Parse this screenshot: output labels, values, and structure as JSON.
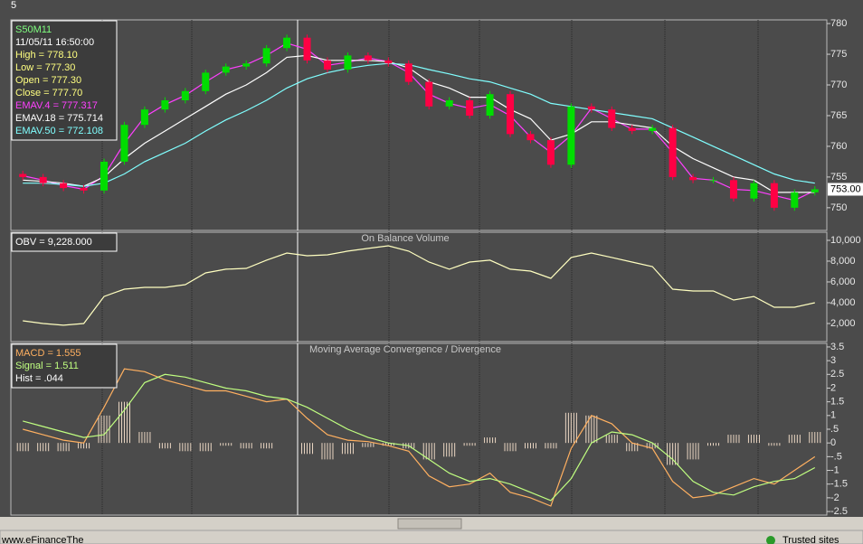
{
  "window": {
    "label": "5"
  },
  "status_bar": {
    "left": "www.eFinanceThe",
    "right": "Trusted sites"
  },
  "chart_data": [
    {
      "type": "candlestick",
      "info": [
        {
          "text": "S50M11",
          "color": "#80ff80"
        },
        {
          "text": "11/05/11 16:50:00",
          "color": "#ffffff"
        },
        {
          "text": "High  = 778.10",
          "color": "#ffff80"
        },
        {
          "text": "Low  = 777.30",
          "color": "#ffff80"
        },
        {
          "text": "Open = 777.30",
          "color": "#ffff80"
        },
        {
          "text": "Close = 777.70",
          "color": "#ffff80"
        },
        {
          "text": "EMAV.4 = 777.317",
          "color": "#ff40ff"
        },
        {
          "text": "EMAV.18 = 775.714",
          "color": "#ffffff"
        },
        {
          "text": "EMAV.50 = 772.108",
          "color": "#80ffff"
        }
      ],
      "up_color": "#00dd00",
      "down_color": "#ff0044",
      "open": [
        755.5,
        755,
        754,
        753.2,
        752.8,
        757.5,
        763.5,
        766,
        767.5,
        769,
        772,
        773,
        773.5,
        776,
        777.7,
        774,
        772.5,
        774.8,
        774,
        773.5,
        770.5,
        766.5,
        767.5,
        765,
        768.5,
        762,
        761,
        757,
        766.5,
        766,
        763,
        762.5,
        763,
        755,
        754.5,
        754.5,
        751.5,
        754,
        750,
        752.5
      ],
      "high": [
        756,
        755.5,
        754.5,
        753.7,
        758,
        764,
        766.5,
        768,
        769.5,
        772.5,
        773.5,
        774,
        776.5,
        778.2,
        778.2,
        774.5,
        775.3,
        775.3,
        774.5,
        774,
        771,
        768,
        768,
        769,
        769,
        762.5,
        761.5,
        767,
        767,
        766.5,
        763.5,
        763.5,
        763.5,
        755.5,
        755,
        755,
        754.5,
        754.5,
        753,
        753.5
      ],
      "low": [
        754.5,
        753.5,
        752.7,
        752.3,
        752.3,
        757,
        763,
        765.5,
        767,
        768.5,
        771.5,
        772.5,
        773,
        775.5,
        773.5,
        772,
        772,
        773.5,
        773,
        770,
        766,
        766,
        764.5,
        764.5,
        761.5,
        760.5,
        756.5,
        756.5,
        765.5,
        762.5,
        762,
        762,
        754.5,
        754,
        754,
        751,
        751,
        749.5,
        749.5,
        752
      ],
      "close": [
        755,
        754,
        753.2,
        752.8,
        757.5,
        763.5,
        766,
        767.5,
        769,
        772,
        773,
        773.5,
        776,
        777.7,
        774,
        772.5,
        774.8,
        774,
        773.5,
        770.5,
        766.5,
        767.5,
        765,
        768.5,
        762,
        761,
        757,
        766.5,
        766,
        763,
        762.5,
        763,
        755,
        754.5,
        754.5,
        751.5,
        754,
        750,
        752.5,
        753
      ],
      "series": [
        {
          "color": "#ff40ff",
          "values": [
            755.2,
            754.5,
            753.6,
            753,
            755.2,
            760.5,
            764.8,
            766.8,
            768.3,
            770.5,
            772.5,
            773.3,
            774.8,
            776.8,
            775.8,
            773.2,
            773.7,
            774.4,
            773.8,
            772,
            768.5,
            767,
            766.2,
            766.8,
            765,
            761.5,
            759,
            761.8,
            766.2,
            764.5,
            762.8,
            762.8,
            759,
            754.8,
            754.5,
            753,
            752.8,
            752,
            751.2,
            752.8
          ]
        },
        {
          "color": "#ffffff",
          "values": [
            754.5,
            754.3,
            754,
            753.5,
            755,
            758,
            760.5,
            762.5,
            764.5,
            766.5,
            768.5,
            770,
            772,
            774.5,
            774.8,
            774,
            774,
            774,
            773.8,
            772.8,
            770.5,
            769.5,
            768,
            768,
            766,
            764.5,
            761,
            762,
            764,
            764,
            763.5,
            763,
            760,
            758,
            756.5,
            755,
            754.5,
            752.5,
            752.5,
            752.5
          ]
        },
        {
          "color": "#80ffff",
          "values": [
            754,
            754,
            753.8,
            753.5,
            754,
            755.5,
            757.5,
            759,
            760.5,
            762.5,
            764.3,
            765.8,
            767.5,
            769.5,
            771,
            772,
            772.7,
            773.2,
            773.5,
            773.3,
            772.5,
            771.8,
            771,
            770.5,
            769.5,
            768.5,
            767,
            766.5,
            766,
            765.5,
            765,
            764.5,
            763,
            761.5,
            760,
            758.5,
            757,
            755.5,
            754.5,
            754
          ]
        }
      ],
      "last_price": {
        "value": 753,
        "label": "753.00"
      },
      "ylim": [
        746.3,
        780.6
      ],
      "yticks": [
        750,
        755,
        760,
        765,
        770,
        775,
        780
      ]
    },
    {
      "type": "line",
      "title": "On Balance Volume",
      "info": [
        {
          "text": "OBV = 9,228.000",
          "color": "#ffffff"
        }
      ],
      "series": [
        {
          "color": "#ffffc0",
          "values": [
            2260,
            2000,
            1830,
            2000,
            4600,
            5300,
            5480,
            5480,
            5740,
            6870,
            7220,
            7300,
            8090,
            8780,
            8520,
            8610,
            8960,
            9220,
            9480,
            8960,
            7910,
            7220,
            7910,
            8090,
            7220,
            7040,
            6350,
            8350,
            8780,
            8350,
            7910,
            7480,
            5300,
            5130,
            5130,
            4260,
            4600,
            3560,
            3560,
            4000
          ]
        }
      ],
      "ylim": [
        260,
        10780
      ],
      "yticks": [
        {
          "value": 2000,
          "label": "2,000"
        },
        {
          "value": 4000,
          "label": "4,000"
        },
        {
          "value": 6000,
          "label": "6,000"
        },
        {
          "value": 8000,
          "label": "8,000"
        },
        {
          "value": 10000,
          "label": "10,000"
        }
      ]
    },
    {
      "type": "combo",
      "title": "Moving Average Convergence / Divergence",
      "info": [
        {
          "text": "MACD = 1.555",
          "color": "#ffb060"
        },
        {
          "text": "Signal = 1.511",
          "color": "#c0ff80"
        },
        {
          "text": "Hist = .044",
          "color": "#ffffff"
        }
      ],
      "series": [
        {
          "style": "bar",
          "color": "#ecd8c4",
          "values": [
            -0.3,
            -0.3,
            -0.3,
            -0.2,
            1.0,
            1.5,
            0.4,
            -0.2,
            -0.3,
            -0.3,
            -0.1,
            -0.2,
            -0.2,
            0,
            -0.4,
            -0.6,
            -0.4,
            -0.15,
            -0.1,
            -0.2,
            -0.6,
            -0.5,
            -0.1,
            0.2,
            -0.3,
            -0.2,
            -0.2,
            1.1,
            1.0,
            0.3,
            -0.3,
            -0.2,
            -0.8,
            -0.6,
            -0.1,
            0.3,
            0.3,
            -0.1,
            0.3,
            0.4
          ]
        },
        {
          "style": "line",
          "color": "#ffb060",
          "values": [
            0.5,
            0.3,
            0.1,
            0,
            1.3,
            2.7,
            2.6,
            2.3,
            2.1,
            1.9,
            1.9,
            1.7,
            1.5,
            1.6,
            0.9,
            0.3,
            0.1,
            0.05,
            -0.1,
            -0.3,
            -1.2,
            -1.6,
            -1.5,
            -1.1,
            -1.8,
            -2.0,
            -2.3,
            -0.2,
            1.0,
            0.7,
            0,
            -0.2,
            -1.4,
            -2.0,
            -1.9,
            -1.6,
            -1.3,
            -1.5,
            -1.0,
            -0.5
          ]
        },
        {
          "style": "line",
          "color": "#c0ff80",
          "values": [
            0.8,
            0.6,
            0.4,
            0.2,
            0.3,
            1.2,
            2.2,
            2.5,
            2.4,
            2.2,
            2.0,
            1.9,
            1.7,
            1.6,
            1.3,
            0.9,
            0.5,
            0.2,
            0,
            -0.1,
            -0.6,
            -1.1,
            -1.4,
            -1.3,
            -1.5,
            -1.8,
            -2.1,
            -1.3,
            0,
            0.4,
            0.3,
            0,
            -0.6,
            -1.4,
            -1.8,
            -1.9,
            -1.6,
            -1.4,
            -1.3,
            -0.9
          ]
        }
      ],
      "ylim": [
        -2.63,
        3.63
      ],
      "yticks": [
        {
          "value": -2.5,
          "label": "-2.5"
        },
        -2,
        {
          "value": -1.5,
          "label": "-1.5"
        },
        -1,
        {
          "value": -0.5,
          "label": "-.5"
        },
        0,
        {
          "value": 0.5,
          "label": ".5"
        },
        1,
        1.5,
        2,
        2.5,
        3,
        3.5
      ]
    }
  ]
}
